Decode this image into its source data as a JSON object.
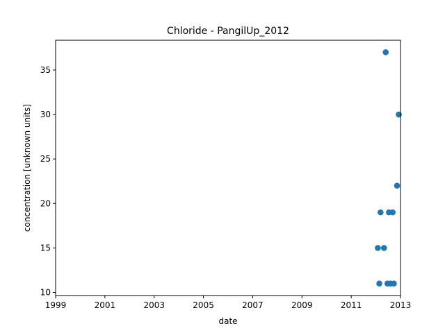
{
  "chart_data": {
    "type": "scatter",
    "title": "Chloride - PangilUp_2012",
    "xlabel": "date",
    "ylabel": "concentration [unknown units]",
    "xlim": [
      1999.0,
      2013.0
    ],
    "ylim": [
      9.65,
      38.35
    ],
    "xticks": [
      1999,
      2001,
      2003,
      2005,
      2007,
      2009,
      2011,
      2013
    ],
    "xtick_labels": [
      "1999",
      "2001",
      "2003",
      "2005",
      "2007",
      "2009",
      "2011",
      "2013"
    ],
    "yticks": [
      10,
      15,
      20,
      25,
      30,
      35
    ],
    "ytick_labels": [
      "10",
      "15",
      "20",
      "25",
      "30",
      "35"
    ],
    "grid": false,
    "marker_color": "#1f77b4",
    "points": [
      {
        "x": 2012.08,
        "y": 15
      },
      {
        "x": 2012.14,
        "y": 11
      },
      {
        "x": 2012.19,
        "y": 19
      },
      {
        "x": 2012.33,
        "y": 15
      },
      {
        "x": 2012.4,
        "y": 37
      },
      {
        "x": 2012.47,
        "y": 11
      },
      {
        "x": 2012.53,
        "y": 19
      },
      {
        "x": 2012.59,
        "y": 11
      },
      {
        "x": 2012.68,
        "y": 19
      },
      {
        "x": 2012.73,
        "y": 11
      },
      {
        "x": 2012.86,
        "y": 22
      },
      {
        "x": 2012.93,
        "y": 30
      }
    ]
  }
}
